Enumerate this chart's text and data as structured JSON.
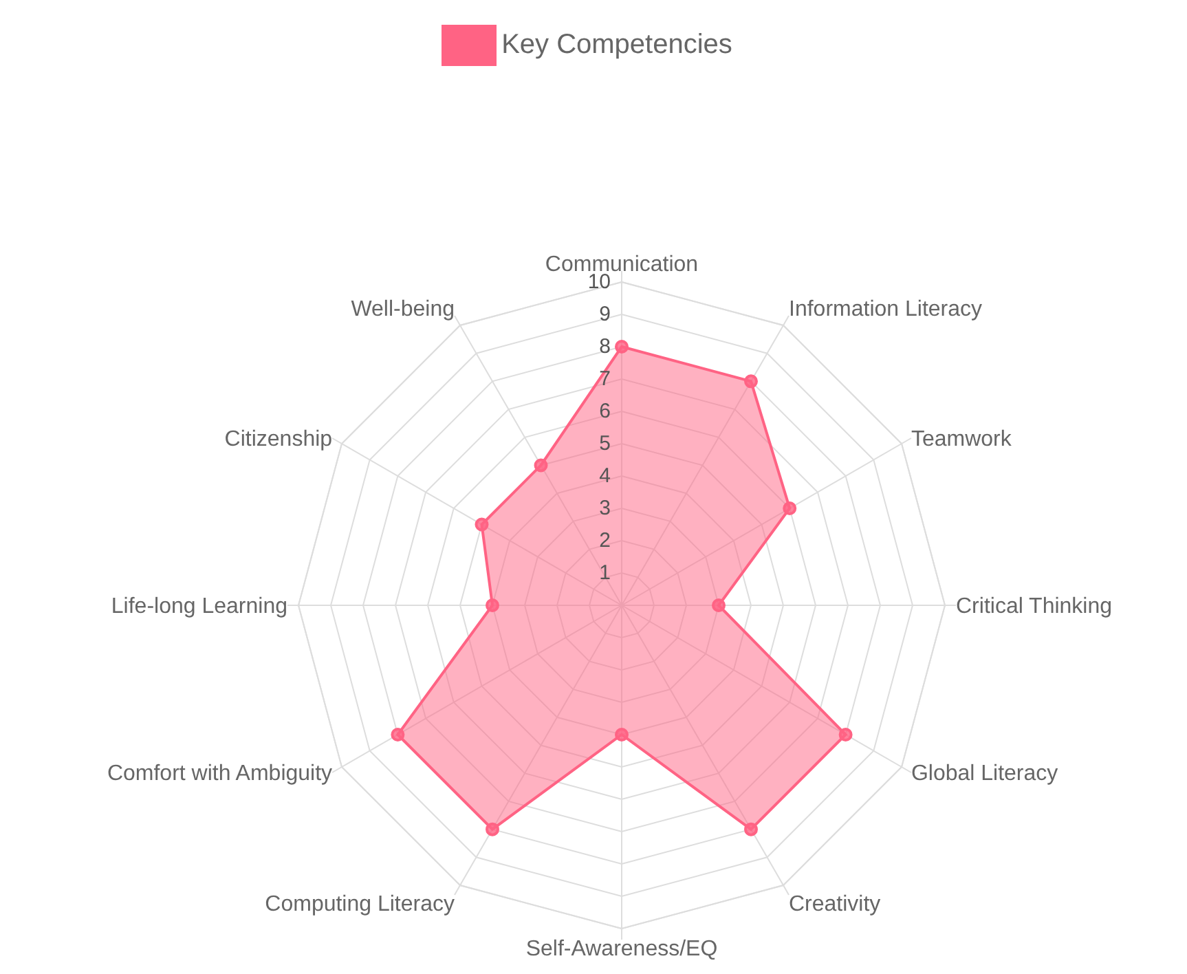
{
  "chart_data": {
    "type": "radar",
    "categories": [
      "Communication",
      "Information Literacy",
      "Teamwork",
      "Critical Thinking",
      "Global Literacy",
      "Creativity",
      "Self-Awareness/EQ",
      "Computing Literacy",
      "Comfort with Ambiguity",
      "Life-long Learning",
      "Citizenship",
      "Well-being"
    ],
    "series": [
      {
        "name": "Key Competencies",
        "color": "#ff6384",
        "values": [
          8,
          8,
          6,
          3,
          8,
          8,
          4,
          8,
          8,
          4,
          5,
          5
        ]
      }
    ],
    "ylim": [
      0,
      10
    ],
    "yticks": [
      1,
      2,
      3,
      4,
      5,
      6,
      7,
      8,
      9,
      10
    ],
    "grid": true,
    "legend": "top",
    "marker": "circle"
  }
}
